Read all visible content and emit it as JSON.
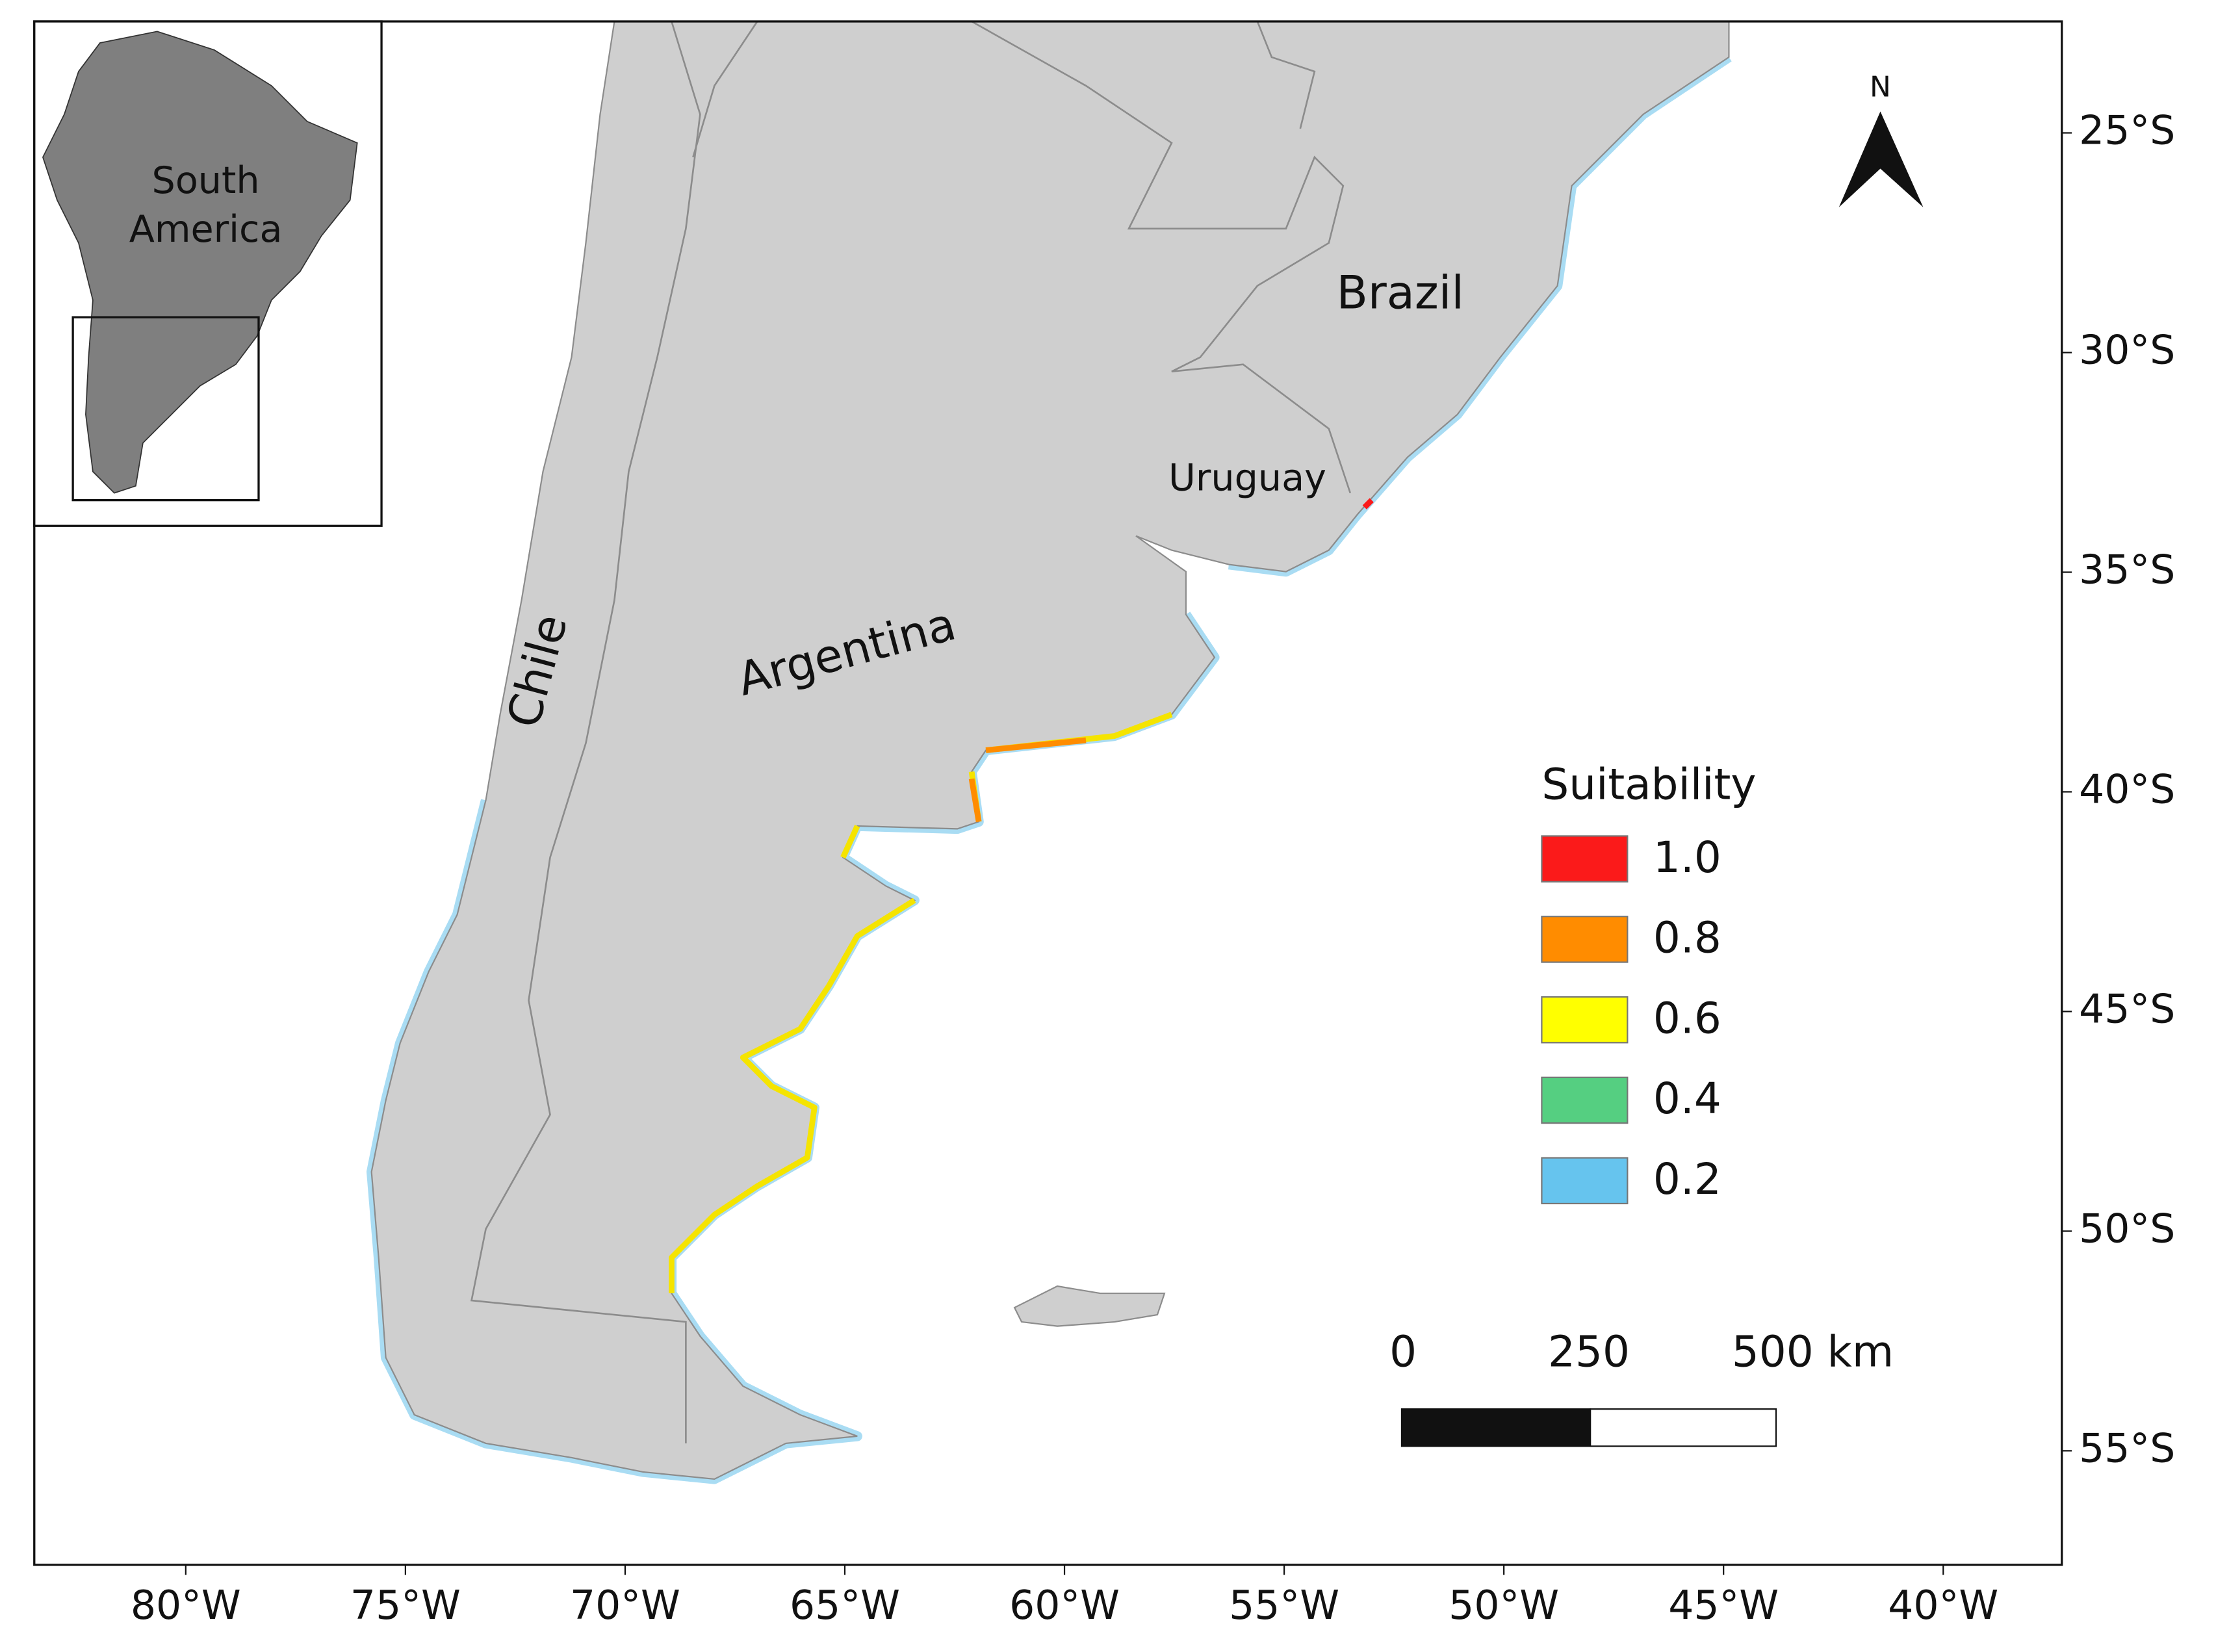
{
  "map": {
    "x_ticks": [
      "80°W",
      "75°W",
      "70°W",
      "65°W",
      "60°W",
      "55°W",
      "50°W",
      "45°W",
      "40°W"
    ],
    "y_ticks": [
      "25°S",
      "30°S",
      "35°S",
      "40°S",
      "45°S",
      "50°S",
      "55°S"
    ],
    "inset_label": [
      "South",
      "America"
    ],
    "country_labels": {
      "brazil": "Brazil",
      "uruguay": "Uruguay",
      "argentina": "Argentina",
      "chile": "Chile"
    },
    "north": "N",
    "legend": {
      "title": "Suitability",
      "items": [
        {
          "label": "1.0",
          "color": "#fb1a1a"
        },
        {
          "label": "0.8",
          "color": "#ff8c00"
        },
        {
          "label": "0.6",
          "color": "#ffff00"
        },
        {
          "label": "0.4",
          "color": "#55cf81"
        },
        {
          "label": "0.2",
          "color": "#66c4ee"
        }
      ]
    },
    "scale_bar": [
      "0",
      "250",
      "500 km"
    ]
  }
}
